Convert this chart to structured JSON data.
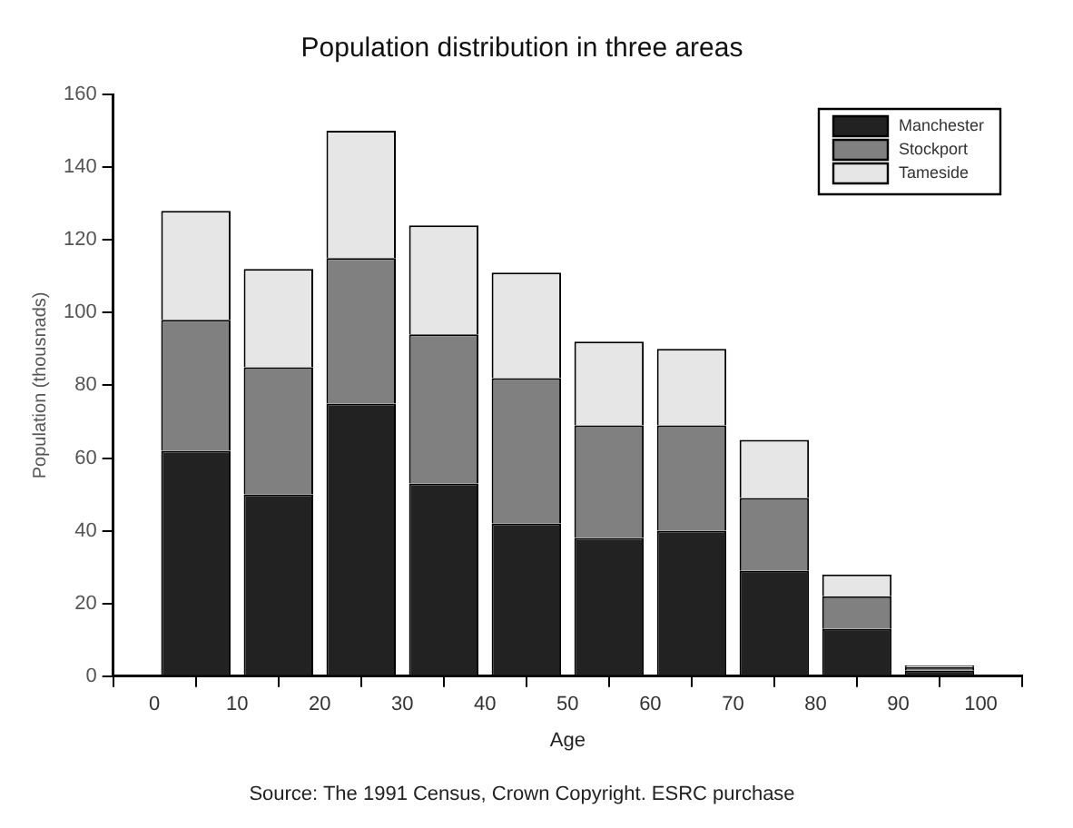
{
  "chart_data": {
    "type": "bar",
    "title": "Population distribution in three areas",
    "xlabel": "Age",
    "ylabel": "Population (thousnads)",
    "annotations": [
      "Source: The 1991 Census, Crown Copyright. ESRC purchase"
    ],
    "x": [
      5,
      15,
      25,
      35,
      45,
      55,
      65,
      75,
      85,
      95
    ],
    "stacked": true,
    "series": [
      {
        "name": "Manchester",
        "color": "#222222",
        "values": [
          62,
          50,
          75,
          53,
          42,
          38,
          40,
          29,
          13,
          1.5
        ]
      },
      {
        "name": "Stockport",
        "color": "#808080",
        "values": [
          36,
          35,
          40,
          41,
          40,
          31,
          29,
          20,
          9,
          1
        ]
      },
      {
        "name": "Tameside",
        "color": "#e6e6e6",
        "values": [
          30,
          27,
          35,
          30,
          29,
          23,
          21,
          16,
          6,
          0.5
        ]
      }
    ],
    "xlim": [
      0,
      100
    ],
    "xticks": [
      0,
      10,
      20,
      30,
      40,
      50,
      60,
      70,
      80,
      90,
      100
    ],
    "ylim": [
      0,
      160
    ],
    "yticks": [
      0,
      20,
      40,
      60,
      80,
      100,
      120,
      140,
      160
    ],
    "legend": "top right"
  }
}
